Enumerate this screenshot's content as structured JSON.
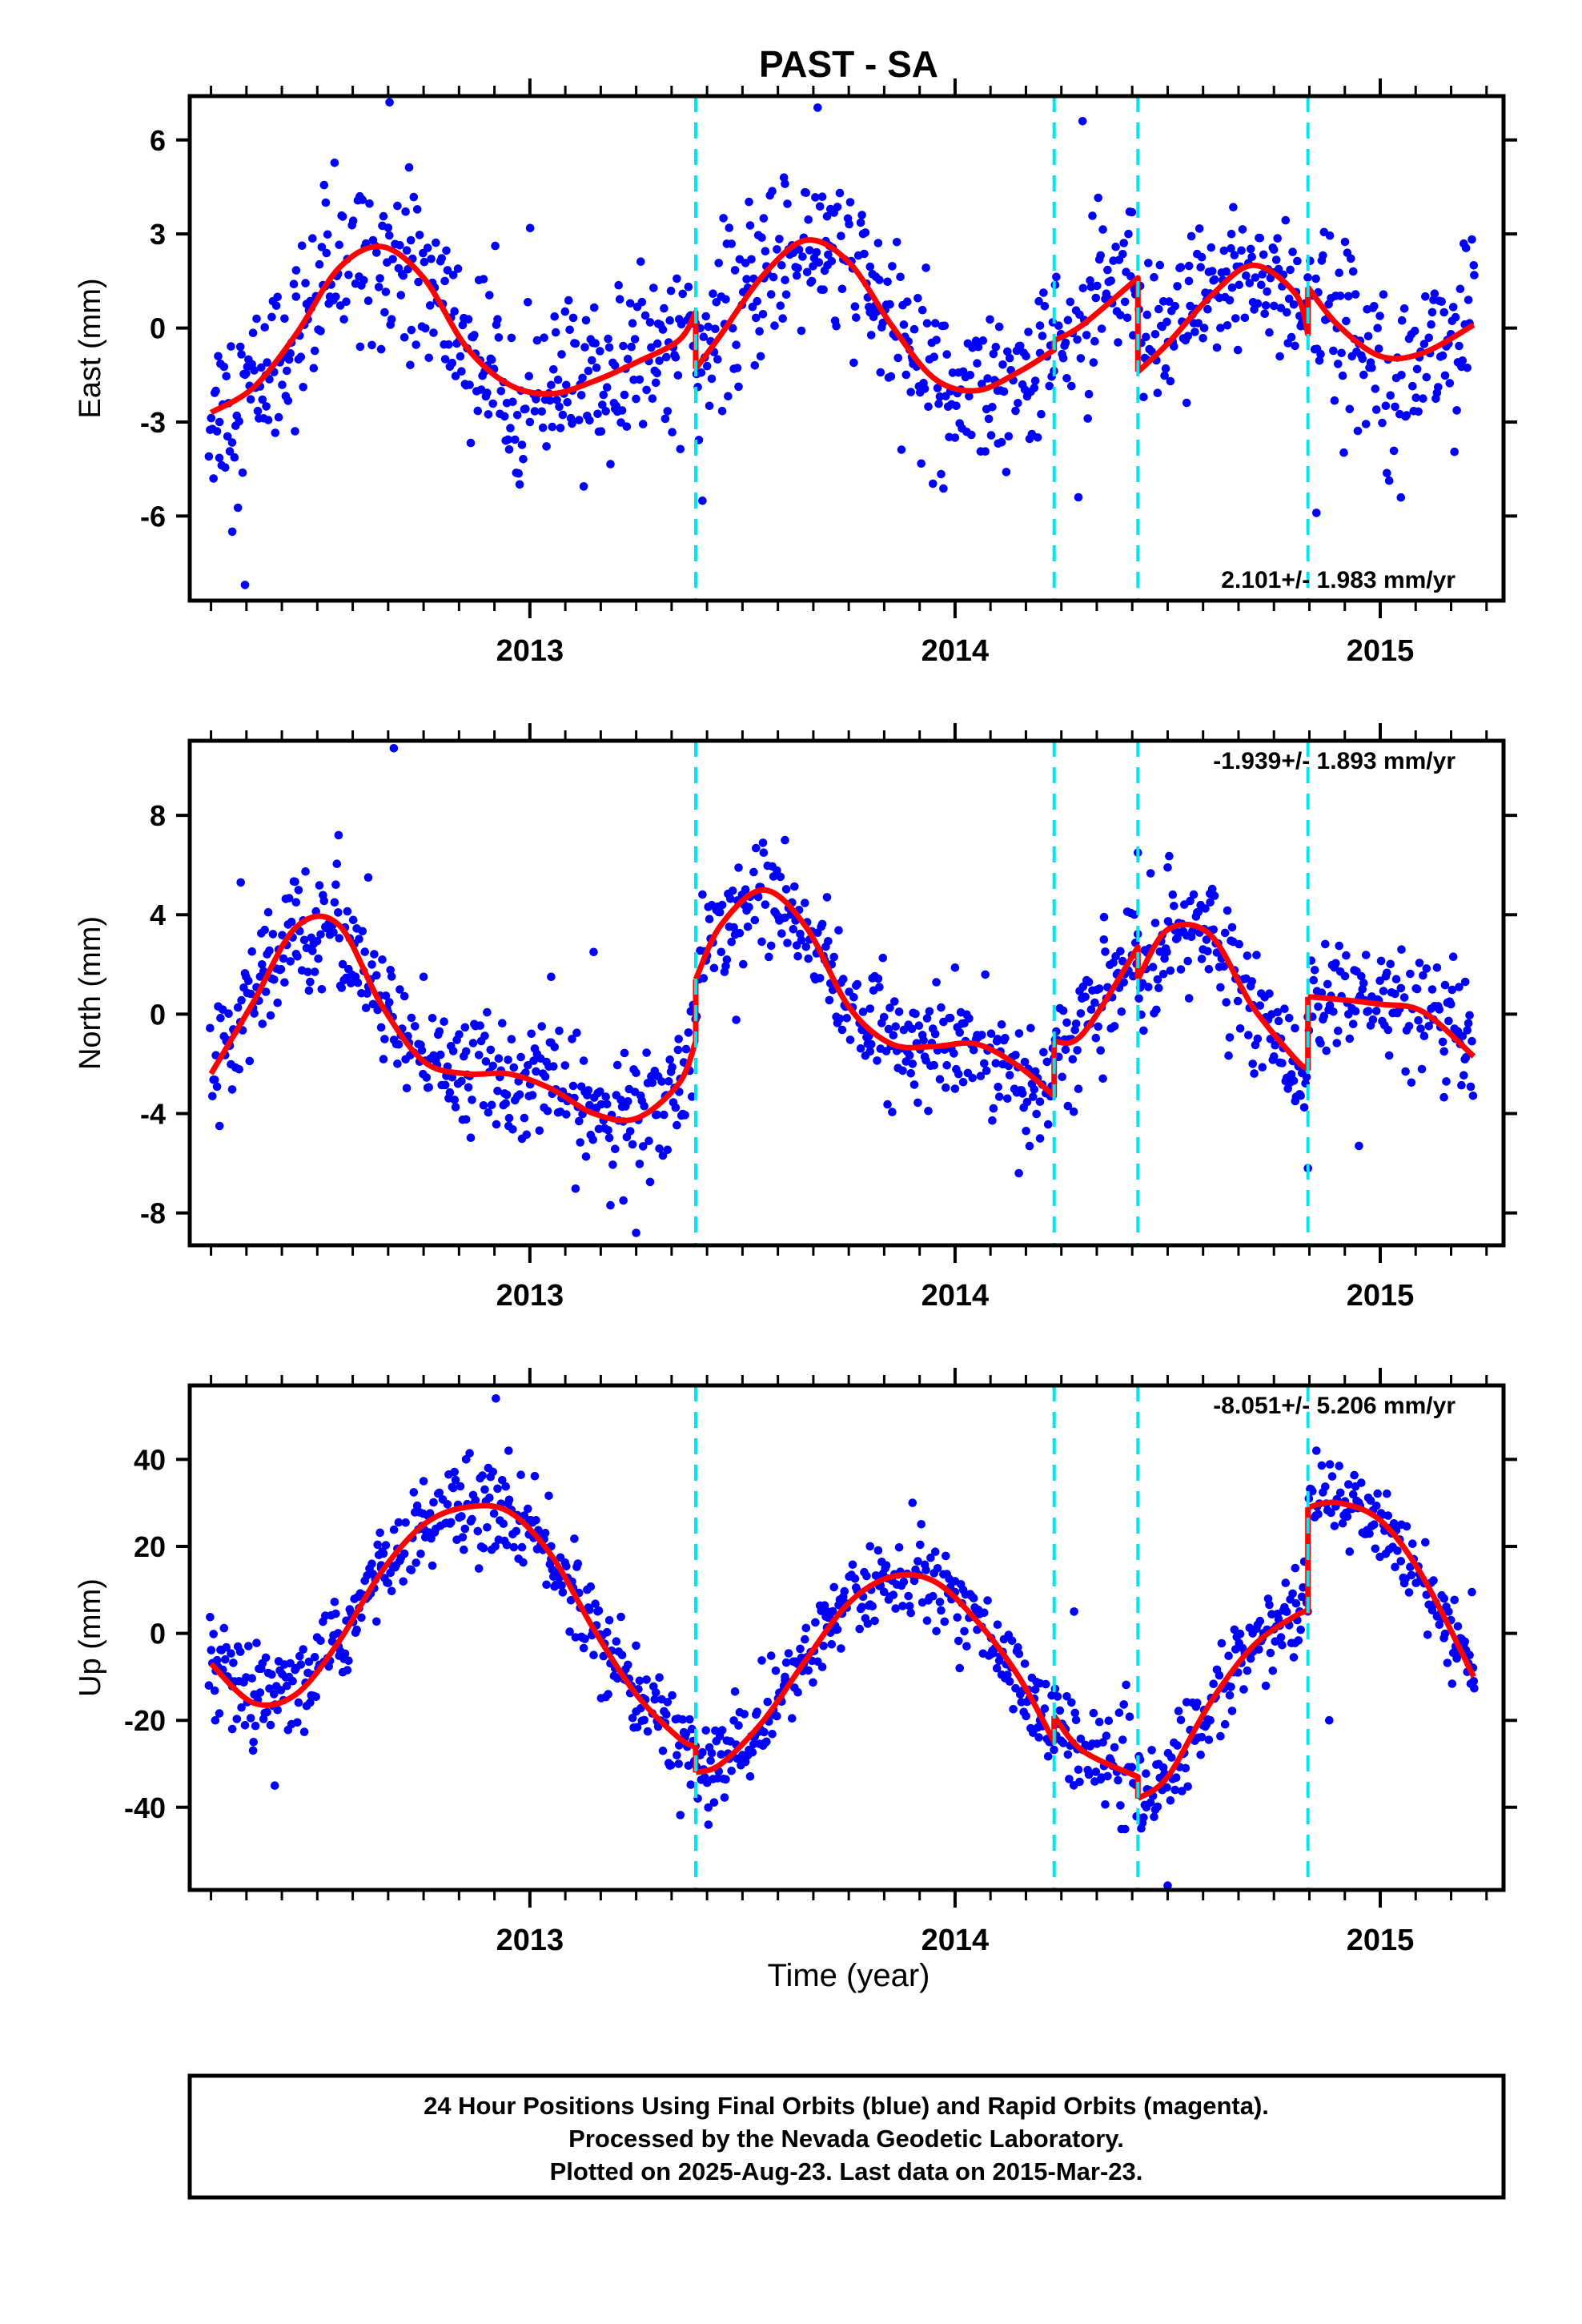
{
  "title": "PAST - SA",
  "xlabel": "Time (year)",
  "footer": {
    "line1": "24 Hour Positions Using Final Orbits (blue) and Rapid Orbits (magenta).",
    "line2": "Processed by the Nevada Geodetic Laboratory.",
    "line3": "Plotted on 2025-Aug-23. Last data on 2015-Mar-23."
  },
  "colors": {
    "final_orbits": "#0000ff",
    "model_fit": "#ff0000",
    "offset_lines": "#00e5ee",
    "frame": "#000000"
  },
  "chart_data": [
    {
      "type": "scatter",
      "name": "east",
      "ylabel": "East (mm)",
      "rate_label": "2.101+/- 1.983 mm/yr",
      "rate_position": "bottom-right",
      "xlim": [
        2012.2,
        2015.29
      ],
      "ylim": [
        -8.7,
        7.4
      ],
      "x_ticks": [
        2013,
        2014,
        2015
      ],
      "y_ticks": [
        -6,
        -3,
        0,
        3,
        6
      ],
      "grid": false,
      "offset_epochs": [
        2013.39,
        2014.233,
        2014.43,
        2014.83
      ],
      "model_fit": {
        "x": [
          2012.25,
          2012.35,
          2012.45,
          2012.55,
          2012.65,
          2012.75,
          2012.85,
          2012.95,
          2013.05,
          2013.15,
          2013.25,
          2013.35,
          2013.39,
          2013.39,
          2013.45,
          2013.55,
          2013.65,
          2013.75,
          2013.85,
          2013.95,
          2014.05,
          2014.15,
          2014.233,
          2014.233,
          2014.3,
          2014.43,
          2014.43,
          2014.5,
          2014.6,
          2014.7,
          2014.8,
          2014.83,
          2014.83,
          2014.9,
          2015.0,
          2015.1,
          2015.22
        ],
        "y": [
          -2.7,
          -1.9,
          -0.2,
          1.9,
          2.6,
          1.6,
          -0.6,
          -1.8,
          -2.1,
          -1.7,
          -1.1,
          -0.4,
          0.5,
          -1.3,
          -0.2,
          1.7,
          2.8,
          2.1,
          0.1,
          -1.6,
          -2.0,
          -1.4,
          -0.7,
          -0.4,
          0.1,
          1.6,
          -1.4,
          -0.5,
          1.0,
          2.0,
          1.1,
          -0.2,
          1.3,
          0.1,
          -0.9,
          -0.8,
          0.1
        ]
      },
      "observations_sample": {
        "x": [
          2012.27,
          2012.3,
          2012.33,
          2012.38,
          2012.45,
          2012.52,
          2012.6,
          2012.67,
          2012.72,
          2012.8,
          2012.9,
          2013.0,
          2013.1,
          2013.2,
          2013.3,
          2013.45,
          2013.55,
          2013.6,
          2013.7,
          2013.8,
          2013.9,
          2014.0,
          2014.1,
          2014.2,
          2014.3,
          2014.45,
          2014.55,
          2014.65,
          2014.75,
          2014.85,
          2014.95,
          2015.05,
          2015.15,
          2015.22
        ],
        "y": [
          -3.0,
          -6.5,
          -8.2,
          -2.5,
          1.0,
          4.0,
          4.2,
          7.2,
          2.8,
          1.5,
          -1.2,
          -3.0,
          -2.0,
          -1.2,
          -0.5,
          1.0,
          3.5,
          4.6,
          2.0,
          0.5,
          -1.0,
          -3.5,
          -2.0,
          -0.8,
          6.6,
          -1.0,
          1.5,
          3.0,
          2.5,
          -5.9,
          -0.5,
          -1.5,
          0.5,
          2.0
        ]
      }
    },
    {
      "type": "scatter",
      "name": "north",
      "ylabel": "North (mm)",
      "rate_label": "-1.939+/- 1.893 mm/yr",
      "rate_position": "top-right",
      "xlim": [
        2012.2,
        2015.29
      ],
      "ylim": [
        -9.3,
        11.0
      ],
      "x_ticks": [
        2013,
        2014,
        2015
      ],
      "y_ticks": [
        -8,
        -4,
        0,
        4,
        8
      ],
      "grid": false,
      "offset_epochs": [
        2013.39,
        2014.233,
        2014.43,
        2014.83
      ],
      "model_fit": {
        "x": [
          2012.25,
          2012.35,
          2012.45,
          2012.55,
          2012.65,
          2012.75,
          2012.85,
          2012.95,
          2013.05,
          2013.15,
          2013.25,
          2013.35,
          2013.39,
          2013.39,
          2013.45,
          2013.55,
          2013.65,
          2013.75,
          2013.85,
          2013.95,
          2014.05,
          2014.15,
          2014.233,
          2014.233,
          2014.3,
          2014.43,
          2014.43,
          2014.5,
          2014.6,
          2014.7,
          2014.8,
          2014.83,
          2014.83,
          2014.9,
          2015.0,
          2015.1,
          2015.22
        ],
        "y": [
          -2.4,
          0.5,
          3.5,
          3.6,
          0.4,
          -1.9,
          -2.4,
          -2.4,
          -3.0,
          -4.0,
          -4.2,
          -2.8,
          -1.1,
          1.4,
          3.6,
          5.0,
          3.5,
          0.3,
          -1.2,
          -1.3,
          -1.2,
          -2.1,
          -3.3,
          -1.1,
          -0.8,
          2.7,
          1.4,
          3.4,
          3.2,
          0.3,
          -1.8,
          -2.2,
          0.7,
          0.6,
          0.4,
          0.1,
          -1.7
        ]
      },
      "observations_sample": {
        "x": [
          2012.27,
          2012.32,
          2012.37,
          2012.45,
          2012.55,
          2012.62,
          2012.68,
          2012.75,
          2012.85,
          2012.95,
          2013.05,
          2013.15,
          2013.22,
          2013.25,
          2013.35,
          2013.45,
          2013.55,
          2013.6,
          2013.7,
          2013.8,
          2013.9,
          2014.0,
          2014.1,
          2014.15,
          2014.2,
          2014.35,
          2014.43,
          2014.5,
          2014.6,
          2014.7,
          2014.8,
          2014.83,
          2014.95,
          2015.05,
          2015.15,
          2015.2
        ],
        "y": [
          -4.5,
          5.3,
          2.0,
          4.5,
          7.2,
          5.5,
          10.7,
          1.5,
          -1.5,
          -4.5,
          1.5,
          2.5,
          -7.5,
          -8.8,
          -1.0,
          2.5,
          6.5,
          7.0,
          2.0,
          -1.5,
          -2.0,
          -3.0,
          -1.0,
          -6.4,
          -5.0,
          3.0,
          6.5,
          5.9,
          4.5,
          -2.0,
          -3.5,
          -6.2,
          -5.3,
          2.6,
          -1.5,
          1.3
        ]
      }
    },
    {
      "type": "scatter",
      "name": "up",
      "ylabel": "Up (mm)",
      "rate_label": "-8.051+/- 5.206 mm/yr",
      "rate_position": "top-right",
      "xlim": [
        2012.2,
        2015.29
      ],
      "ylim": [
        -59,
        57
      ],
      "x_ticks": [
        2013,
        2014,
        2015
      ],
      "y_ticks": [
        -40,
        -20,
        0,
        20,
        40
      ],
      "grid": false,
      "offset_epochs": [
        2013.39,
        2014.233,
        2014.43,
        2014.83
      ],
      "model_fit": {
        "x": [
          2012.25,
          2012.35,
          2012.45,
          2012.55,
          2012.65,
          2012.75,
          2012.85,
          2012.95,
          2013.05,
          2013.15,
          2013.25,
          2013.35,
          2013.39,
          2013.39,
          2013.45,
          2013.55,
          2013.65,
          2013.75,
          2013.85,
          2013.95,
          2014.05,
          2014.15,
          2014.233,
          2014.233,
          2014.3,
          2014.43,
          2014.43,
          2014.5,
          2014.6,
          2014.7,
          2014.8,
          2014.83,
          2014.83,
          2014.9,
          2015.0,
          2015.1,
          2015.22
        ],
        "y": [
          -7,
          -16,
          -14,
          -2,
          14,
          25,
          29,
          28,
          18,
          1,
          -14,
          -24,
          -26,
          -32,
          -30,
          -20,
          -6,
          7,
          13,
          12,
          3,
          -10,
          -25,
          -19,
          -27,
          -33,
          -38,
          -33,
          -16,
          -3,
          4,
          5,
          29,
          30,
          26,
          13,
          -10
        ]
      },
      "observations_sample": {
        "x": [
          2012.26,
          2012.3,
          2012.35,
          2012.4,
          2012.45,
          2012.55,
          2012.65,
          2012.75,
          2012.85,
          2012.92,
          2012.95,
          2013.05,
          2013.15,
          2013.25,
          2013.35,
          2013.42,
          2013.5,
          2013.6,
          2013.7,
          2013.8,
          2013.9,
          2014.0,
          2014.1,
          2014.2,
          2014.28,
          2014.4,
          2014.45,
          2014.5,
          2014.6,
          2014.7,
          2014.8,
          2014.85,
          2014.88,
          2014.95,
          2015.05,
          2015.15,
          2015.22
        ],
        "y": [
          -20,
          -22,
          -25,
          -35,
          -8,
          -3,
          15,
          35,
          40,
          54,
          42,
          20,
          -5,
          -18,
          -30,
          -44,
          -28,
          -10,
          5,
          20,
          30,
          12,
          2,
          -20,
          5,
          -45,
          -40,
          -58,
          -20,
          0,
          15,
          42,
          -20,
          30,
          25,
          8,
          -11
        ]
      }
    }
  ]
}
